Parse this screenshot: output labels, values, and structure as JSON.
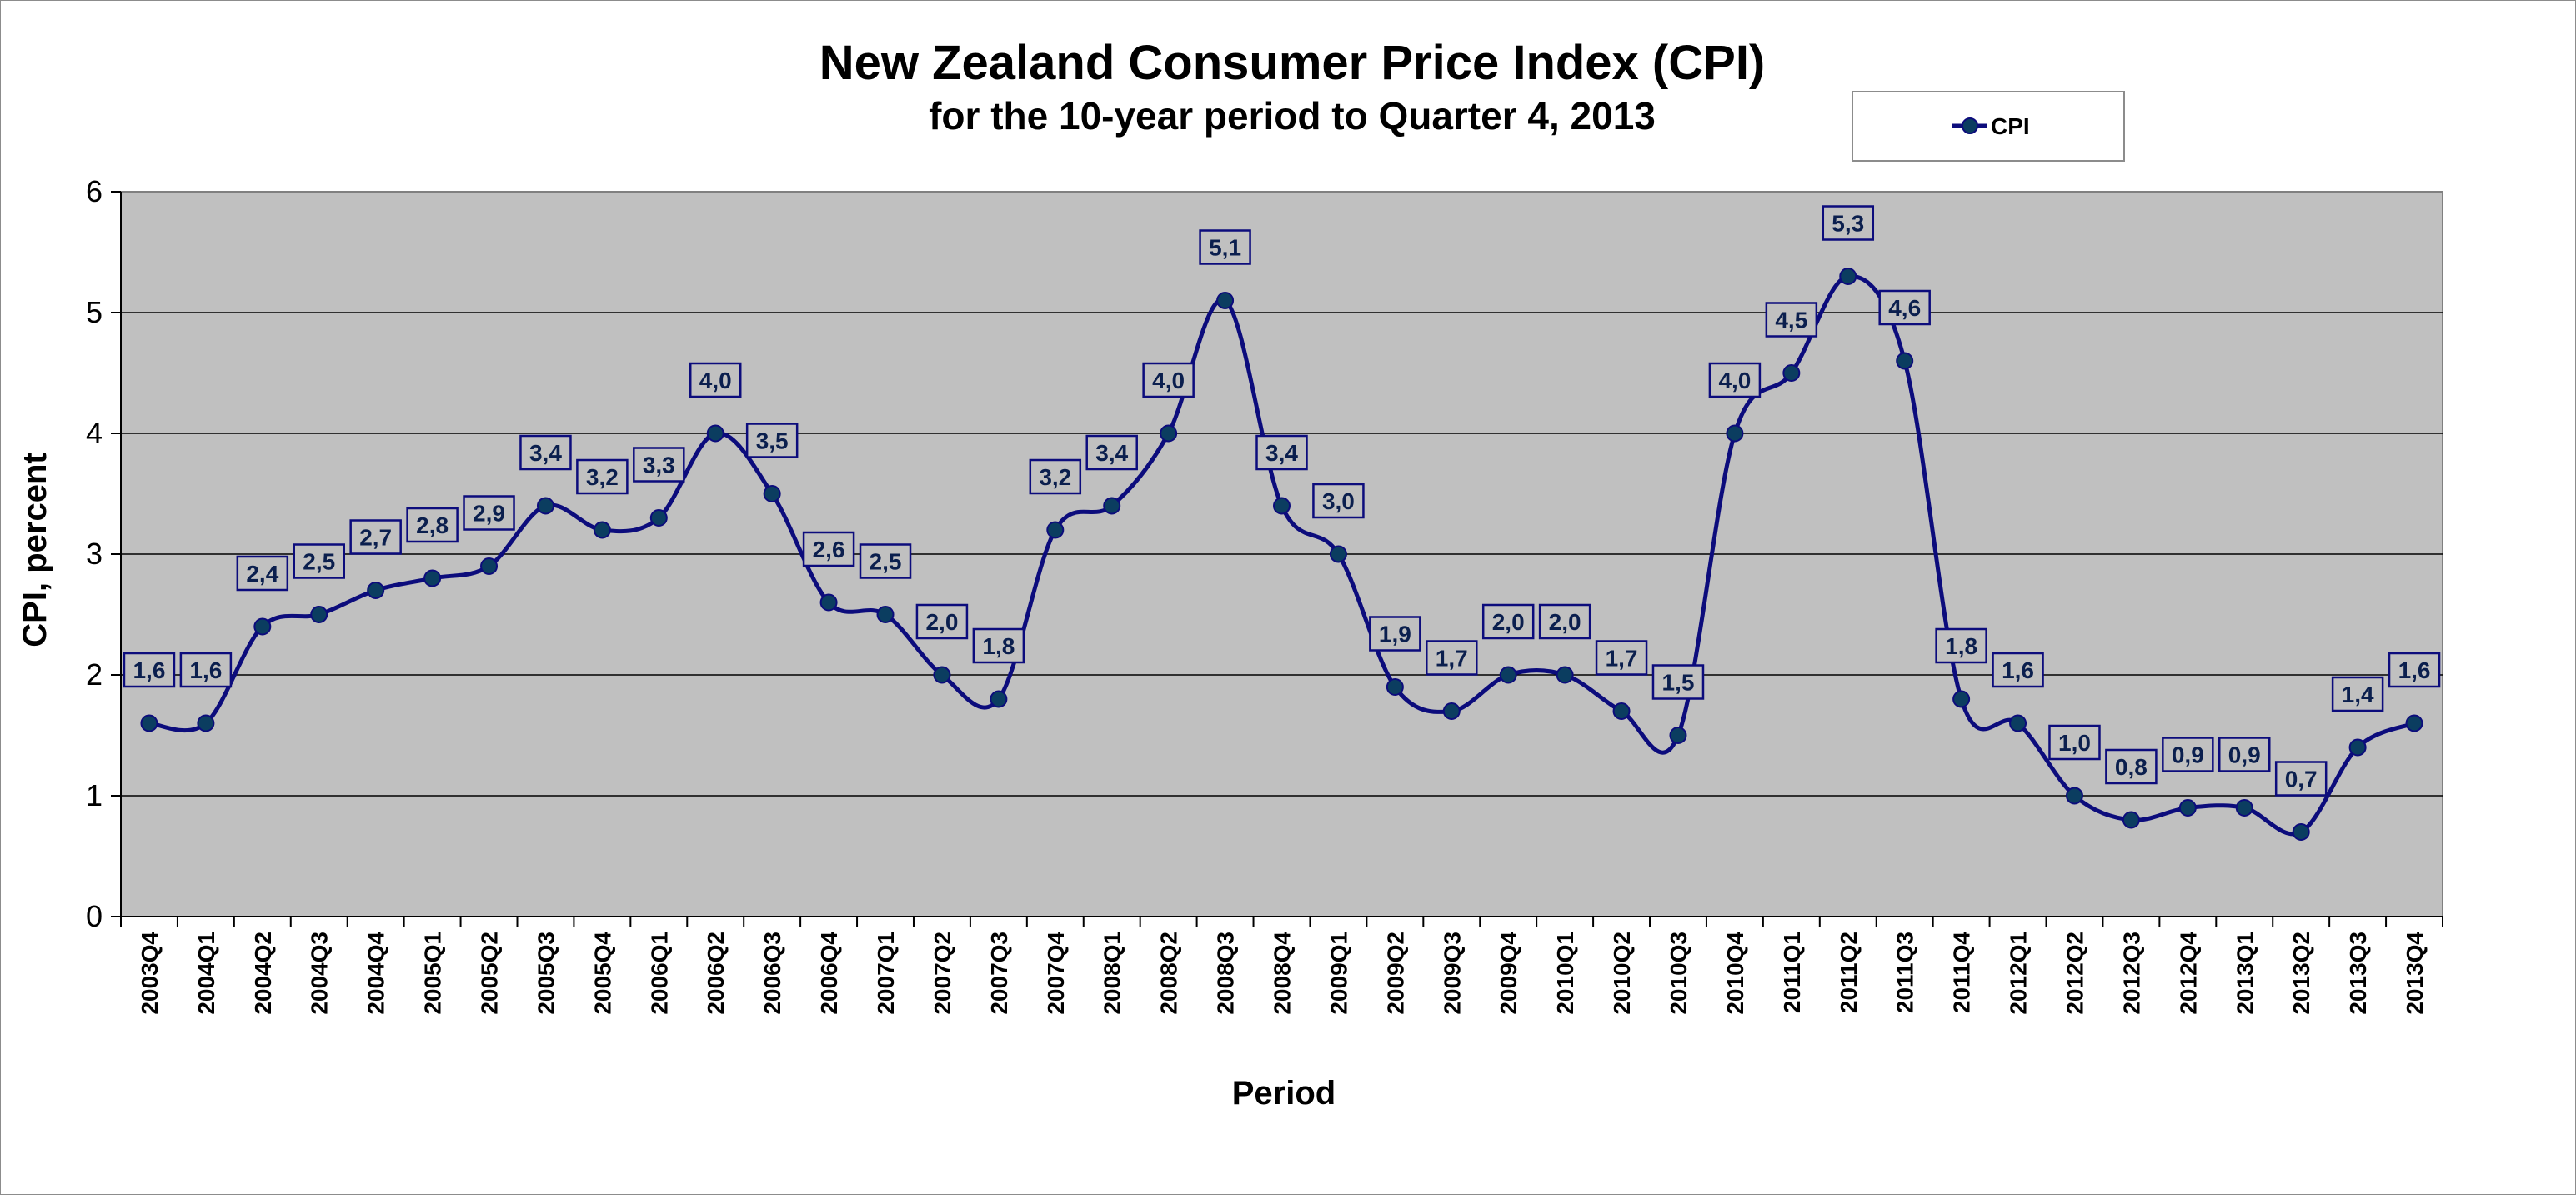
{
  "colors": {
    "plot_background": "#c0c0c0",
    "series_line": "#0c0c7c",
    "marker_fill": "#0b3d60",
    "label_text": "#0b1f4e",
    "label_border": "#0c0c7c",
    "label_fill": "#c0c0c0",
    "gridline": "#000000"
  },
  "chart_data": {
    "type": "line",
    "title": "New Zealand Consumer Price Index (CPI)",
    "subtitle": "for the 10-year period to Quarter 4, 2013",
    "xlabel": "Period",
    "ylabel": "CPI, percent",
    "ylim": [
      0,
      6
    ],
    "yticks": [
      "0",
      "1",
      "2",
      "3",
      "4",
      "5",
      "6"
    ],
    "grid": true,
    "legend_position": "top-right",
    "categories": [
      "2003Q4",
      "2004Q1",
      "2004Q2",
      "2004Q3",
      "2004Q4",
      "2005Q1",
      "2005Q2",
      "2005Q3",
      "2005Q4",
      "2006Q1",
      "2006Q2",
      "2006Q3",
      "2006Q4",
      "2007Q1",
      "2007Q2",
      "2007Q3",
      "2007Q4",
      "2008Q1",
      "2008Q2",
      "2008Q3",
      "2008Q4",
      "2009Q1",
      "2009Q2",
      "2009Q3",
      "2009Q4",
      "2010Q1",
      "2010Q2",
      "2010Q3",
      "2010Q4",
      "2011Q1",
      "2011Q2",
      "2011Q3",
      "2011Q4",
      "2012Q1",
      "2012Q2",
      "2012Q3",
      "2012Q4",
      "2013Q1",
      "2013Q2",
      "2013Q3",
      "2013Q4"
    ],
    "series": [
      {
        "name": "CPI",
        "values": [
          1.6,
          1.6,
          2.4,
          2.5,
          2.7,
          2.8,
          2.9,
          3.4,
          3.2,
          3.3,
          4.0,
          3.5,
          2.6,
          2.5,
          2.0,
          1.8,
          3.2,
          3.4,
          4.0,
          5.1,
          3.4,
          3.0,
          1.9,
          1.7,
          2.0,
          2.0,
          1.7,
          1.5,
          4.0,
          4.5,
          5.3,
          4.6,
          1.8,
          1.6,
          1.0,
          0.8,
          0.9,
          0.9,
          0.7,
          1.4,
          1.6
        ],
        "labels": [
          "1,6",
          "1,6",
          "2,4",
          "2,5",
          "2,7",
          "2,8",
          "2,9",
          "3,4",
          "3,2",
          "3,3",
          "4,0",
          "3,5",
          "2,6",
          "2,5",
          "2,0",
          "1,8",
          "3,2",
          "3,4",
          "4,0",
          "5,1",
          "3,4",
          "3,0",
          "1,9",
          "1,7",
          "2,0",
          "2,0",
          "1,7",
          "1,5",
          "4,0",
          "4,5",
          "5,3",
          "4,6",
          "1,8",
          "1,6",
          "1,0",
          "0,8",
          "0,9",
          "0,9",
          "0,7",
          "1,4",
          "1,6"
        ]
      }
    ]
  }
}
